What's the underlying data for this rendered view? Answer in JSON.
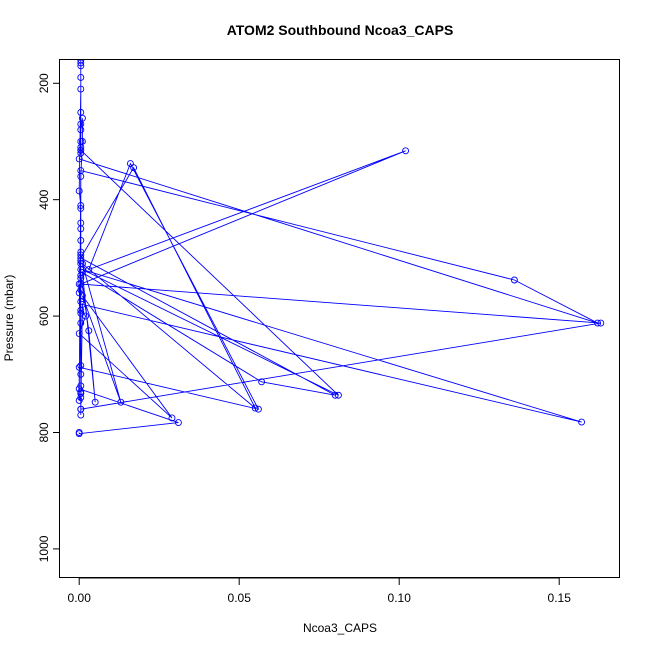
{
  "chart_data": {
    "type": "line",
    "title": "ATOM2 Southbound Ncoa3_CAPS",
    "xlabel": "Ncoa3_CAPS",
    "ylabel": "Pressure (mbar)",
    "xlim": [
      -0.006,
      0.169
    ],
    "ylim": [
      1050,
      160
    ],
    "y_inverted": true,
    "grid": false,
    "legend": "none",
    "color": "#0000ff",
    "marker": "open-circle",
    "x_ticks": [
      0.0,
      0.05,
      0.1,
      0.15
    ],
    "x_tick_labels": [
      "0.00",
      "0.05",
      "0.10",
      "0.15"
    ],
    "y_ticks": [
      200,
      400,
      600,
      800,
      1000
    ],
    "y_tick_labels": [
      "200",
      "400",
      "600",
      "800",
      "1000"
    ],
    "series": [
      {
        "points": [
          [
            0,
            800
          ],
          [
            0,
            802
          ],
          [
            0.031,
            783
          ],
          [
            0,
            725
          ],
          [
            0,
            688
          ],
          [
            0.056,
            760
          ],
          [
            0.016,
            338
          ],
          [
            0.003,
            520
          ],
          [
            0.102,
            316
          ],
          [
            0.0005,
            545
          ],
          [
            0.163,
            612
          ],
          [
            0.0005,
            760
          ],
          [
            0.001,
            580
          ],
          [
            0.157,
            782
          ],
          [
            0.001,
            520
          ],
          [
            0.081,
            736
          ],
          [
            0.0005,
            315
          ],
          [
            0.0005,
            300
          ],
          [
            0.0005,
            270
          ],
          [
            0.0005,
            250
          ],
          [
            0.0005,
            170
          ],
          [
            0.0005,
            160
          ],
          [
            0.0005,
            165
          ],
          [
            0.0005,
            190
          ],
          [
            0.0005,
            210
          ],
          [
            0,
            385
          ],
          [
            0.0005,
            410
          ],
          [
            0.0005,
            440
          ],
          [
            0.0005,
            490
          ],
          [
            0.0005,
            505
          ],
          [
            0.0005,
            530
          ],
          [
            0.003,
            625
          ],
          [
            0.005,
            748
          ],
          [
            0.001,
            525
          ],
          [
            0.057,
            713
          ],
          [
            0.08,
            736
          ],
          [
            0.0005,
            500
          ],
          [
            0.017,
            345
          ],
          [
            0.055,
            758
          ],
          [
            0.001,
            510
          ],
          [
            0.013,
            748
          ],
          [
            0.001,
            565
          ],
          [
            0.029,
            775
          ],
          [
            0,
            630
          ],
          [
            0.002,
            600
          ],
          [
            0.0005,
            590
          ],
          [
            0.0005,
            555
          ],
          [
            0,
            560
          ],
          [
            0,
            545
          ],
          [
            0.0005,
            700
          ],
          [
            0.0005,
            730
          ],
          [
            0.0005,
            740
          ],
          [
            0,
            745
          ],
          [
            0.0005,
            350
          ],
          [
            0.136,
            538
          ],
          [
            0.162,
            612
          ],
          [
            0,
            330
          ],
          [
            0.0005,
            320
          ],
          [
            0.0005,
            310
          ],
          [
            0.0005,
            280
          ],
          [
            0.001,
            260
          ],
          [
            0.001,
            300
          ],
          [
            0.0005,
            360
          ],
          [
            0.0005,
            415
          ],
          [
            0.0005,
            450
          ],
          [
            0.0005,
            470
          ],
          [
            0.0005,
            495
          ],
          [
            0.0005,
            510
          ],
          [
            0.0005,
            520
          ],
          [
            0.0005,
            535
          ],
          [
            0.0005,
            575
          ],
          [
            0.0005,
            595
          ],
          [
            0.0005,
            612
          ],
          [
            0.0005,
            685
          ],
          [
            0.0005,
            720
          ],
          [
            0.0005,
            733
          ],
          [
            0.0005,
            760
          ],
          [
            0.0005,
            770
          ]
        ]
      }
    ]
  }
}
